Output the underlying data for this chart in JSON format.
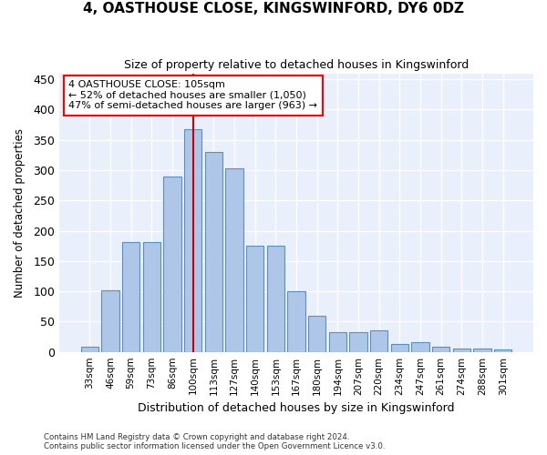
{
  "title": "4, OASTHOUSE CLOSE, KINGSWINFORD, DY6 0DZ",
  "subtitle": "Size of property relative to detached houses in Kingswinford",
  "xlabel": "Distribution of detached houses by size in Kingswinford",
  "ylabel": "Number of detached properties",
  "footnote1": "Contains HM Land Registry data © Crown copyright and database right 2024.",
  "footnote2": "Contains public sector information licensed under the Open Government Licence v3.0.",
  "annotation_line1": "4 OASTHOUSE CLOSE: 105sqm",
  "annotation_line2": "← 52% of detached houses are smaller (1,050)",
  "annotation_line3": "47% of semi-detached houses are larger (963) →",
  "categories": [
    "33sqm",
    "46sqm",
    "59sqm",
    "73sqm",
    "86sqm",
    "100sqm",
    "113sqm",
    "127sqm",
    "140sqm",
    "153sqm",
    "167sqm",
    "180sqm",
    "194sqm",
    "207sqm",
    "220sqm",
    "234sqm",
    "247sqm",
    "261sqm",
    "274sqm",
    "288sqm",
    "301sqm"
  ],
  "values": [
    8,
    102,
    181,
    181,
    289,
    367,
    330,
    303,
    176,
    176,
    100,
    59,
    32,
    32,
    35,
    13,
    16,
    8,
    5,
    5,
    4
  ],
  "bar_color": "#aec6e8",
  "bar_edge_color": "#5a8fc0",
  "redline_x": 5.0,
  "redline_color": "#cc0000",
  "bg_color": "#eaf0fb",
  "ylim": [
    0,
    460
  ],
  "yticks": [
    0,
    50,
    100,
    150,
    200,
    250,
    300,
    350,
    400,
    450
  ]
}
